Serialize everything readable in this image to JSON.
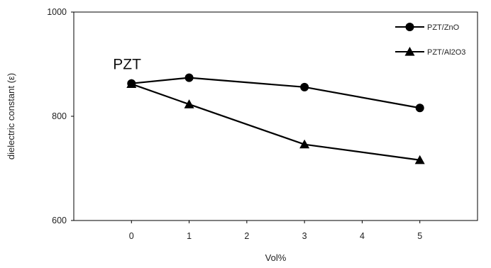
{
  "chart_data": {
    "type": "line",
    "x": [
      0,
      1,
      3,
      5
    ],
    "xticks": [
      "0",
      "1",
      "2",
      "3",
      "4",
      "5"
    ],
    "xlim": [
      -1,
      6
    ],
    "yticks": [
      "600",
      "800",
      "1000"
    ],
    "ylim": [
      600,
      1000
    ],
    "xlabel": "Vol%",
    "ylabel": "dielectric constant (ε)",
    "legend_position": "top-right",
    "grid": false,
    "series": [
      {
        "name": "PZT/ZnO",
        "marker": "circle",
        "color": "#000000",
        "values": [
          863,
          874,
          856,
          816
        ]
      },
      {
        "name": "PZT/Al2O3",
        "marker": "triangle",
        "color": "#000000",
        "values": [
          862,
          823,
          746,
          716
        ]
      }
    ],
    "annotations": [
      {
        "text": "PZT",
        "x": 0,
        "y": 863
      }
    ]
  }
}
